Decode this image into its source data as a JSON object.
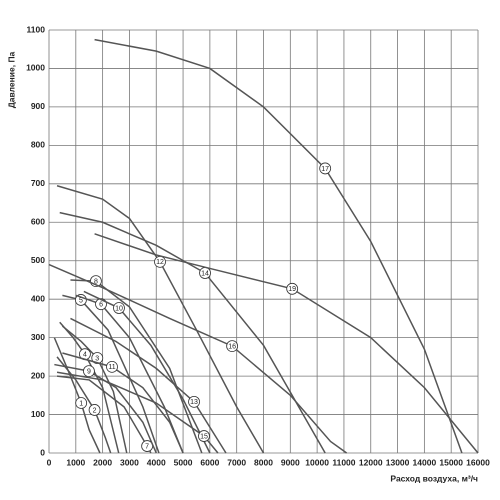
{
  "chart_data": {
    "type": "line",
    "x_label": "Расход воздуха, м³/ч",
    "y_label": "Давление, Па",
    "xlim": [
      0,
      16000
    ],
    "ylim": [
      0,
      1100
    ],
    "xticks": [
      0,
      1000,
      2000,
      3000,
      4000,
      5000,
      6000,
      7000,
      8000,
      9000,
      10000,
      11000,
      12000,
      13000,
      14000,
      15000,
      16000
    ],
    "yticks": [
      0,
      100,
      200,
      300,
      400,
      500,
      600,
      700,
      800,
      900,
      1000,
      1100
    ],
    "grid": true,
    "series": [
      {
        "name": "1",
        "color": "#555555",
        "x": [
          200,
          800,
          1200,
          1500,
          1900
        ],
        "values": [
          300,
          200,
          130,
          60,
          0
        ]
      },
      {
        "name": "2",
        "color": "#555555",
        "x": [
          300,
          1000,
          1700,
          2100,
          2300
        ],
        "values": [
          250,
          190,
          112,
          40,
          0
        ]
      },
      {
        "name": "3",
        "color": "#555555",
        "x": [
          500,
          1200,
          1800,
          2400,
          2900
        ],
        "values": [
          330,
          290,
          247,
          160,
          0
        ]
      },
      {
        "name": "4",
        "color": "#555555",
        "x": [
          400,
          900,
          1340,
          2000,
          2600
        ],
        "values": [
          340,
          300,
          257,
          170,
          0
        ]
      },
      {
        "name": "5",
        "color": "#555555",
        "x": [
          500,
          1190,
          2200,
          3500,
          4100
        ],
        "values": [
          410,
          398,
          320,
          120,
          0
        ]
      },
      {
        "name": "6",
        "color": "#555555",
        "x": [
          1000,
          1940,
          3000,
          4300,
          5000
        ],
        "values": [
          410,
          387,
          300,
          120,
          0
        ]
      },
      {
        "name": "7",
        "color": "#555555",
        "x": [
          300,
          1500,
          2800,
          3660,
          3800
        ],
        "values": [
          200,
          190,
          120,
          18,
          0
        ]
      },
      {
        "name": "8",
        "color": "#555555",
        "x": [
          800,
          1750,
          3000,
          4500,
          5700
        ],
        "values": [
          450,
          447,
          380,
          220,
          0
        ]
      },
      {
        "name": "9",
        "color": "#555555",
        "x": [
          200,
          1490,
          2500,
          3500,
          4000
        ],
        "values": [
          230,
          213,
          170,
          80,
          0
        ]
      },
      {
        "name": "10",
        "color": "#555555",
        "x": [
          1300,
          2610,
          3800,
          5000,
          6000
        ],
        "values": [
          420,
          377,
          280,
          140,
          0
        ]
      },
      {
        "name": "11",
        "color": "#555555",
        "x": [
          500,
          2350,
          3500,
          4500,
          5000
        ],
        "values": [
          260,
          224,
          170,
          80,
          0
        ]
      },
      {
        "name": "12",
        "color": "#555555",
        "x": [
          300,
          2000,
          3000,
          4140,
          5500,
          7000,
          8000
        ],
        "values": [
          695,
          660,
          610,
          497,
          320,
          120,
          0
        ]
      },
      {
        "name": "13",
        "color": "#555555",
        "x": [
          800,
          2500,
          4000,
          5410,
          6600
        ],
        "values": [
          350,
          290,
          220,
          133,
          0
        ]
      },
      {
        "name": "14",
        "color": "#555555",
        "x": [
          400,
          2000,
          4000,
          5820,
          8000,
          10300
        ],
        "values": [
          625,
          600,
          540,
          468,
          280,
          0
        ]
      },
      {
        "name": "15",
        "color": "#555555",
        "x": [
          300,
          2000,
          4000,
          5780,
          6300
        ],
        "values": [
          210,
          190,
          130,
          44,
          0
        ]
      },
      {
        "name": "16",
        "color": "#555555",
        "x": [
          0,
          2000,
          4500,
          6830,
          9000,
          10500,
          11100
        ],
        "values": [
          490,
          430,
          350,
          278,
          150,
          30,
          0
        ]
      },
      {
        "name": "17",
        "color": "#555555",
        "x": [
          1700,
          4000,
          6000,
          8000,
          10300,
          12000,
          14000,
          15400
        ],
        "values": [
          1075,
          1045,
          1000,
          900,
          740,
          550,
          270,
          0
        ]
      },
      {
        "name": "19",
        "color": "#555555",
        "x": [
          1700,
          4000,
          6000,
          9070,
          12000,
          14000,
          16000
        ],
        "values": [
          570,
          515,
          480,
          427,
          300,
          170,
          0
        ]
      }
    ]
  }
}
